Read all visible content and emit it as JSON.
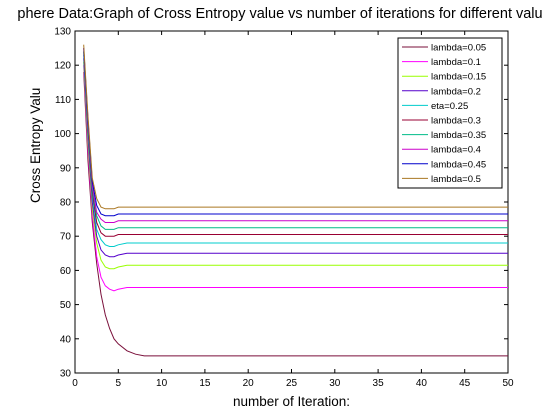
{
  "chart_data": {
    "type": "line",
    "title": "phere Data:Graph of Cross Entropy value vs number of iterations for different valu",
    "xlabel": "number of Iteration:",
    "ylabel": "Cross Entropy Valu",
    "xlim": [
      0,
      50
    ],
    "ylim": [
      30,
      130
    ],
    "xticks": [
      0,
      5,
      10,
      15,
      20,
      25,
      30,
      35,
      40,
      45,
      50
    ],
    "yticks": [
      30,
      40,
      50,
      60,
      70,
      80,
      90,
      100,
      110,
      120,
      130
    ],
    "grid": false,
    "legend_position": "top-right",
    "x": [
      1,
      1.5,
      2,
      2.5,
      3,
      3.5,
      4,
      4.5,
      5,
      6,
      7,
      8,
      10,
      15,
      20,
      30,
      40,
      50
    ],
    "series": [
      {
        "name": "lambda=0.05",
        "color": "#7a0f3a",
        "values": [
          118,
          92,
          74,
          62,
          53,
          47,
          43,
          40,
          38.5,
          36.5,
          35.5,
          35,
          35,
          35,
          35,
          35,
          35,
          35
        ]
      },
      {
        "name": "lambda=0.1",
        "color": "#ff00ff",
        "values": [
          120,
          95,
          76,
          64,
          58,
          55.5,
          54.5,
          54,
          54.5,
          55,
          55,
          55,
          55,
          55,
          55,
          55,
          55,
          55
        ]
      },
      {
        "name": "lambda=0.15",
        "color": "#99ff00",
        "values": [
          121,
          97,
          78,
          68,
          63,
          61,
          60.5,
          60.5,
          61,
          61.5,
          61.5,
          61.5,
          61.5,
          61.5,
          61.5,
          61.5,
          61.5,
          61.5
        ]
      },
      {
        "name": "lambda=0.2",
        "color": "#5500cc",
        "values": [
          122,
          99,
          80,
          70,
          66,
          64.5,
          64,
          64,
          64.5,
          65,
          65,
          65,
          65,
          65,
          65,
          65,
          65,
          65
        ]
      },
      {
        "name": "eta=0.25",
        "color": "#00cccc",
        "values": [
          123,
          100,
          82,
          72,
          69,
          67.5,
          67,
          67,
          67.5,
          68,
          68,
          68,
          68,
          68,
          68,
          68,
          68,
          68
        ]
      },
      {
        "name": "lambda=0.3",
        "color": "#990033",
        "values": [
          124,
          101,
          83,
          74,
          71,
          70,
          70,
          70,
          70.5,
          70.5,
          70.5,
          70.5,
          70.5,
          70.5,
          70.5,
          70.5,
          70.5,
          70.5
        ]
      },
      {
        "name": "lambda=0.35",
        "color": "#00bb88",
        "values": [
          124,
          102,
          84,
          76,
          73,
          72,
          72,
          72,
          72.5,
          72.5,
          72.5,
          72.5,
          72.5,
          72.5,
          72.5,
          72.5,
          72.5,
          72.5
        ]
      },
      {
        "name": "lambda=0.4",
        "color": "#cc00cc",
        "values": [
          125,
          103,
          85,
          77,
          75,
          74,
          74,
          74,
          74.5,
          74.5,
          74.5,
          74.5,
          74.5,
          74.5,
          74.5,
          74.5,
          74.5,
          74.5
        ]
      },
      {
        "name": "lambda=0.45",
        "color": "#0000cc",
        "values": [
          125,
          104,
          86,
          79,
          76.5,
          76,
          76,
          76,
          76.5,
          76.5,
          76.5,
          76.5,
          76.5,
          76.5,
          76.5,
          76.5,
          76.5,
          76.5
        ]
      },
      {
        "name": "lambda=0.5",
        "color": "#aa7722",
        "values": [
          126,
          105,
          87,
          81,
          78.5,
          78,
          78,
          78,
          78.5,
          78.5,
          78.5,
          78.5,
          78.5,
          78.5,
          78.5,
          78.5,
          78.5,
          78.5
        ]
      }
    ]
  }
}
